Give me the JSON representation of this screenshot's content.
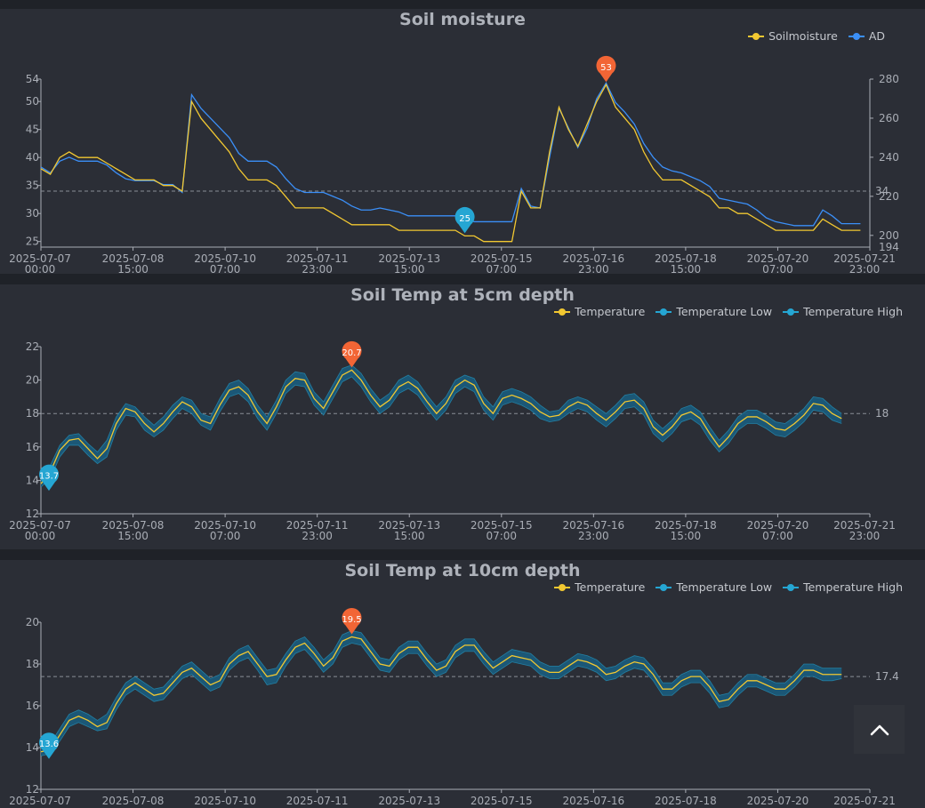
{
  "colors": {
    "yellow": "#f2c831",
    "blue": "#3b8ff7",
    "teal": "#25a6d3",
    "band": "#1a5a7a",
    "red": "#f26535",
    "axis": "#a9adb5",
    "grid": "#8a8e96"
  },
  "x_ticks": [
    "2025-07-07\n00:00",
    "2025-07-08\n15:00",
    "2025-07-10\n07:00",
    "2025-07-11\n23:00",
    "2025-07-13\n15:00",
    "2025-07-15\n07:00",
    "2025-07-16\n23:00",
    "2025-07-18\n15:00",
    "2025-07-20\n07:00",
    "2025-07-21\n23:00"
  ],
  "x_ticks_short": [
    "2025-07-07",
    "2025-07-08",
    "2025-07-10",
    "2025-07-11",
    "2025-07-13",
    "2025-07-15",
    "2025-07-16",
    "2025-07-18",
    "2025-07-20",
    "2025-07-21"
  ],
  "top_button_icon": "chevron-up-icon",
  "chart_data": [
    {
      "type": "line",
      "title": "Soil moisture",
      "ylim": [
        24,
        54
      ],
      "y2lim": [
        194,
        280
      ],
      "y_ticks": [
        25,
        30,
        35,
        40,
        45,
        50,
        54
      ],
      "y2_ticks": [
        200,
        220,
        240,
        260,
        280
      ],
      "y2_extra_tick": "194",
      "markline": {
        "value": 34,
        "label": "34"
      },
      "max_pin": "53",
      "min_pin": "25",
      "series": [
        {
          "name": "Soilmoisture",
          "axis": "left",
          "values": [
            38,
            37,
            40,
            41,
            40,
            40,
            40,
            39,
            38,
            37,
            36,
            36,
            36,
            35,
            35,
            34,
            50,
            47,
            45,
            43,
            41,
            38,
            36,
            36,
            36,
            35,
            33,
            31,
            31,
            31,
            31,
            30,
            29,
            28,
            28,
            28,
            28,
            28,
            27,
            27,
            27,
            27,
            27,
            27,
            27,
            26,
            26,
            25,
            25,
            25,
            25,
            34,
            31,
            31,
            41,
            49,
            45,
            42,
            46,
            50,
            53,
            49,
            47,
            45,
            41,
            38,
            36,
            36,
            36,
            35,
            34,
            33,
            31,
            31,
            30,
            30,
            29,
            28,
            27,
            27,
            27,
            27,
            27,
            29,
            28,
            27,
            27,
            27
          ]
        },
        {
          "name": "AD",
          "axis": "right",
          "values": [
            235,
            232,
            238,
            240,
            238,
            238,
            238,
            236,
            232,
            229,
            228,
            228,
            228,
            226,
            226,
            222,
            272,
            265,
            260,
            255,
            250,
            242,
            238,
            238,
            238,
            235,
            229,
            224,
            222,
            222,
            222,
            220,
            218,
            215,
            213,
            213,
            214,
            213,
            212,
            210,
            210,
            210,
            210,
            210,
            210,
            209,
            207,
            207,
            207,
            207,
            207,
            224,
            215,
            214,
            240,
            265,
            255,
            245,
            255,
            270,
            278,
            268,
            263,
            257,
            247,
            240,
            235,
            233,
            232,
            230,
            228,
            225,
            219,
            218,
            217,
            216,
            213,
            209,
            207,
            206,
            205,
            205,
            205,
            213,
            210,
            206,
            206,
            206
          ]
        }
      ]
    },
    {
      "type": "line",
      "title": "Soil Temp at 5cm depth",
      "ylim": [
        12,
        22
      ],
      "y_ticks": [
        12,
        14,
        16,
        18,
        20,
        22
      ],
      "markline": {
        "value": 18,
        "label": "18"
      },
      "max_pin": "20.7",
      "min_pin": "13.7",
      "series": [
        {
          "name": "Temperature",
          "values": [
            13.8,
            14.5,
            15.8,
            16.4,
            16.5,
            15.9,
            15.3,
            15.9,
            17.4,
            18.3,
            18.1,
            17.4,
            16.9,
            17.4,
            18.1,
            18.7,
            18.4,
            17.6,
            17.4,
            18.5,
            19.4,
            19.6,
            19.1,
            18.1,
            17.4,
            18.4,
            19.6,
            20.1,
            20.0,
            18.9,
            18.3,
            19.3,
            20.3,
            20.6,
            20.0,
            19.1,
            18.4,
            18.8,
            19.6,
            19.9,
            19.5,
            18.7,
            18.0,
            18.6,
            19.6,
            20.0,
            19.7,
            18.6,
            18.0,
            18.9,
            19.1,
            18.9,
            18.6,
            18.1,
            17.8,
            17.9,
            18.4,
            18.7,
            18.5,
            18.0,
            17.6,
            18.1,
            18.7,
            18.8,
            18.3,
            17.2,
            16.7,
            17.2,
            17.9,
            18.1,
            17.7,
            16.8,
            16.0,
            16.6,
            17.4,
            17.8,
            17.8,
            17.5,
            17.1,
            17.0,
            17.4,
            17.9,
            18.6,
            18.5,
            18.0,
            17.7
          ]
        },
        {
          "name": "Temperature Low",
          "values": [
            13.6,
            14.1,
            15.4,
            16.1,
            16.1,
            15.5,
            15.0,
            15.4,
            17.0,
            17.9,
            17.8,
            17.0,
            16.6,
            17.0,
            17.7,
            18.3,
            18.0,
            17.3,
            17.0,
            18.1,
            19.0,
            19.2,
            18.7,
            17.7,
            17.0,
            18.0,
            19.2,
            19.7,
            19.6,
            18.5,
            17.9,
            18.9,
            19.9,
            20.2,
            19.6,
            18.7,
            18.0,
            18.4,
            19.2,
            19.5,
            19.1,
            18.3,
            17.6,
            18.2,
            19.2,
            19.6,
            19.3,
            18.2,
            17.6,
            18.5,
            18.7,
            18.5,
            18.2,
            17.7,
            17.5,
            17.6,
            18.0,
            18.3,
            18.1,
            17.6,
            17.2,
            17.7,
            18.3,
            18.4,
            17.9,
            16.8,
            16.3,
            16.8,
            17.5,
            17.7,
            17.3,
            16.4,
            15.7,
            16.2,
            17.0,
            17.4,
            17.4,
            17.1,
            16.7,
            16.6,
            17.0,
            17.5,
            18.2,
            18.1,
            17.6,
            17.4
          ]
        },
        {
          "name": "Temperature High",
          "values": [
            14.1,
            14.9,
            16.1,
            16.7,
            16.8,
            16.2,
            15.7,
            16.4,
            17.8,
            18.6,
            18.4,
            17.8,
            17.3,
            17.8,
            18.5,
            19.0,
            18.8,
            18.0,
            17.8,
            18.9,
            19.8,
            20.0,
            19.5,
            18.5,
            17.8,
            18.8,
            20.0,
            20.5,
            20.4,
            19.3,
            18.7,
            19.7,
            20.7,
            20.9,
            20.4,
            19.5,
            18.8,
            19.2,
            20.0,
            20.3,
            19.9,
            19.1,
            18.4,
            19.0,
            20.0,
            20.3,
            20.1,
            19.0,
            18.4,
            19.3,
            19.5,
            19.3,
            19.0,
            18.5,
            18.1,
            18.2,
            18.8,
            19.0,
            18.8,
            18.4,
            18.0,
            18.5,
            19.1,
            19.2,
            18.7,
            17.6,
            17.1,
            17.6,
            18.3,
            18.5,
            18.1,
            17.2,
            16.4,
            17.0,
            17.8,
            18.2,
            18.2,
            17.9,
            17.5,
            17.4,
            17.8,
            18.3,
            19.0,
            18.9,
            18.4,
            18.0
          ]
        }
      ]
    },
    {
      "type": "line",
      "title": "Soil Temp at 10cm depth",
      "ylim": [
        12,
        20
      ],
      "y_ticks": [
        12,
        14,
        16,
        18,
        20
      ],
      "markline": {
        "value": 17.4,
        "label": "17.4"
      },
      "max_pin": "19.5",
      "min_pin": "13.6",
      "series": [
        {
          "name": "Temperature",
          "values": [
            13.8,
            13.9,
            14.6,
            15.3,
            15.5,
            15.3,
            15.0,
            15.2,
            16.1,
            16.8,
            17.1,
            16.8,
            16.5,
            16.6,
            17.1,
            17.6,
            17.8,
            17.4,
            17.0,
            17.2,
            18.0,
            18.4,
            18.6,
            18.0,
            17.4,
            17.5,
            18.2,
            18.8,
            19.0,
            18.5,
            17.9,
            18.3,
            19.1,
            19.3,
            19.2,
            18.6,
            18.0,
            17.9,
            18.5,
            18.8,
            18.8,
            18.2,
            17.7,
            17.9,
            18.6,
            18.9,
            18.9,
            18.3,
            17.8,
            18.1,
            18.4,
            18.3,
            18.2,
            17.8,
            17.6,
            17.6,
            17.9,
            18.2,
            18.1,
            17.9,
            17.5,
            17.6,
            17.9,
            18.1,
            18.0,
            17.5,
            16.8,
            16.8,
            17.2,
            17.4,
            17.4,
            16.9,
            16.2,
            16.3,
            16.8,
            17.2,
            17.2,
            17.0,
            16.8,
            16.8,
            17.2,
            17.7,
            17.7,
            17.5,
            17.5,
            17.5
          ]
        },
        {
          "name": "Temperature Low",
          "values": [
            13.6,
            13.7,
            14.3,
            15.0,
            15.2,
            15.0,
            14.8,
            14.9,
            15.8,
            16.5,
            16.8,
            16.5,
            16.2,
            16.3,
            16.8,
            17.3,
            17.5,
            17.1,
            16.7,
            16.9,
            17.7,
            18.1,
            18.3,
            17.7,
            17.0,
            17.1,
            17.9,
            18.5,
            18.7,
            18.2,
            17.6,
            18.0,
            18.8,
            19.0,
            18.9,
            18.3,
            17.7,
            17.6,
            18.2,
            18.5,
            18.5,
            17.9,
            17.4,
            17.6,
            18.3,
            18.6,
            18.6,
            18.0,
            17.5,
            17.8,
            18.1,
            18.0,
            17.9,
            17.5,
            17.3,
            17.3,
            17.6,
            17.9,
            17.8,
            17.6,
            17.2,
            17.3,
            17.6,
            17.8,
            17.7,
            17.2,
            16.5,
            16.5,
            16.9,
            17.1,
            17.1,
            16.6,
            15.9,
            16.0,
            16.5,
            16.9,
            16.9,
            16.7,
            16.5,
            16.5,
            16.9,
            17.4,
            17.4,
            17.2,
            17.2,
            17.3
          ]
        },
        {
          "name": "Temperature High",
          "values": [
            14.0,
            14.2,
            14.9,
            15.6,
            15.8,
            15.6,
            15.3,
            15.6,
            16.4,
            17.1,
            17.4,
            17.1,
            16.8,
            16.9,
            17.4,
            17.9,
            18.1,
            17.7,
            17.3,
            17.5,
            18.3,
            18.7,
            18.9,
            18.3,
            17.7,
            17.8,
            18.5,
            19.1,
            19.3,
            18.8,
            18.2,
            18.6,
            19.4,
            19.6,
            19.5,
            18.9,
            18.3,
            18.2,
            18.8,
            19.1,
            19.1,
            18.5,
            18.0,
            18.2,
            18.9,
            19.2,
            19.2,
            18.6,
            18.1,
            18.4,
            18.7,
            18.6,
            18.5,
            18.1,
            17.9,
            17.9,
            18.2,
            18.5,
            18.4,
            18.2,
            17.8,
            17.9,
            18.2,
            18.4,
            18.3,
            17.8,
            17.1,
            17.1,
            17.5,
            17.7,
            17.7,
            17.2,
            16.5,
            16.6,
            17.1,
            17.5,
            17.5,
            17.3,
            17.1,
            17.1,
            17.5,
            18.0,
            18.0,
            17.8,
            17.8,
            17.8
          ]
        }
      ]
    }
  ]
}
